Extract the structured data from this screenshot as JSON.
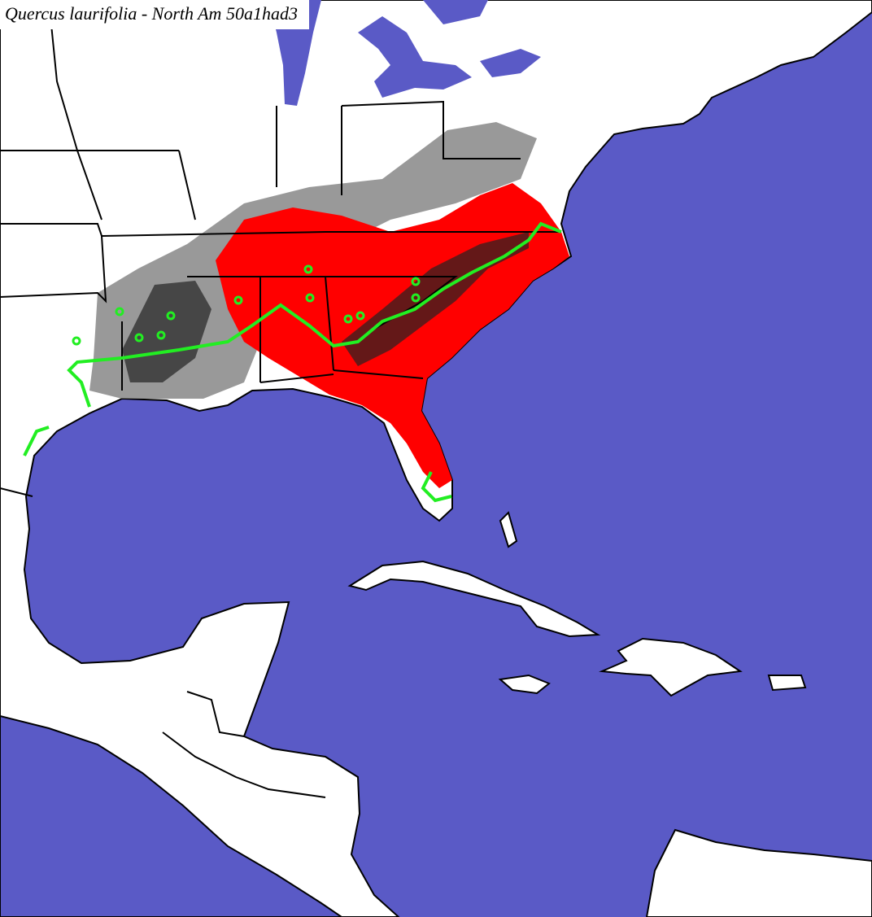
{
  "title": "Quercus laurifolia - North Am 50a1had3"
}
